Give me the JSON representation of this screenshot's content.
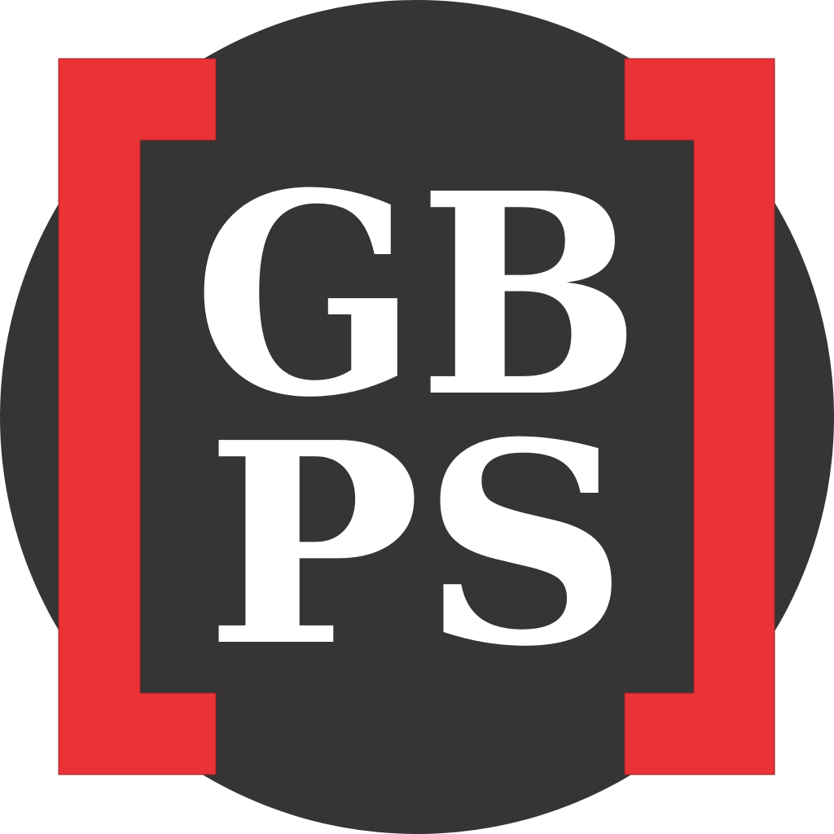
{
  "logo": {
    "line1": "GB",
    "line2": "PS",
    "colors": {
      "background": "#ffffff",
      "circle": "#363435",
      "bracket": "#e93337",
      "letters": "#ffffff"
    }
  }
}
